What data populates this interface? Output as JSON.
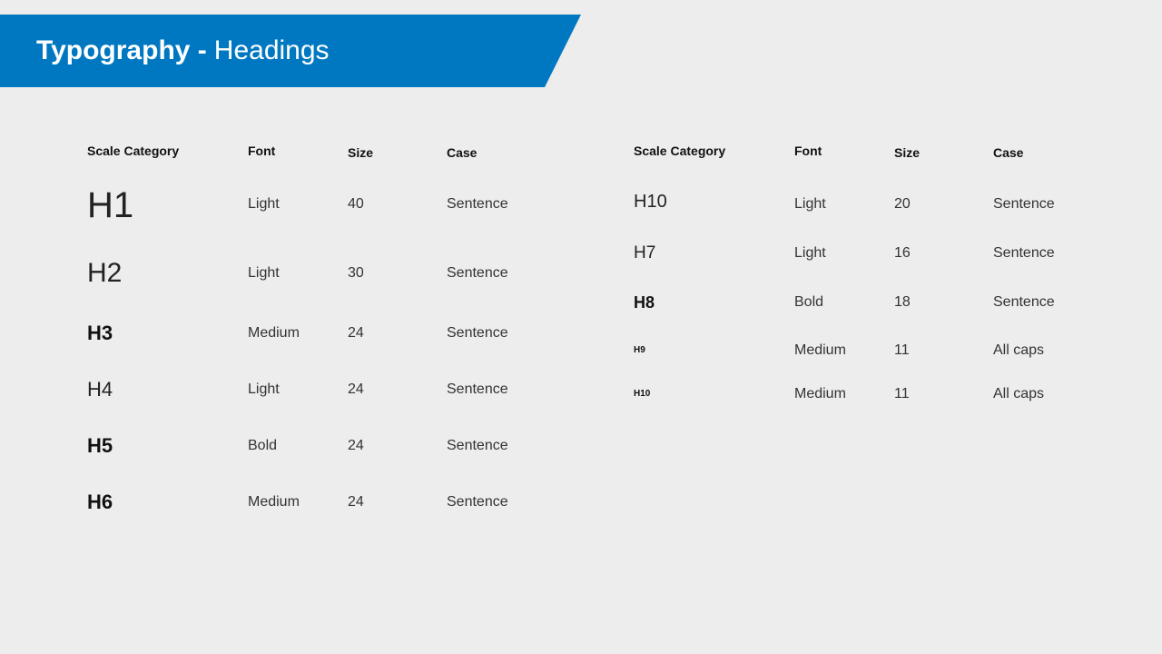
{
  "banner": {
    "title_bold": "Typography -",
    "title_light": "Headings",
    "color": "#0078c1"
  },
  "left_table": {
    "headers": [
      "Scale Category",
      "Font",
      "Size",
      "Case"
    ],
    "rows": [
      {
        "category": "H1",
        "font": "Light",
        "size": "40",
        "case": "Sentence"
      },
      {
        "category": "H2",
        "font": "Light",
        "size": "30",
        "case": "Sentence"
      },
      {
        "category": "H3",
        "font": "Medium",
        "size": "24",
        "case": "Sentence"
      },
      {
        "category": "H4",
        "font": "Light",
        "size": "24",
        "case": "Sentence"
      },
      {
        "category": "H5",
        "font": "Bold",
        "size": "24",
        "case": "Sentence"
      },
      {
        "category": "H6",
        "font": "Medium",
        "size": "24",
        "case": "Sentence"
      }
    ]
  },
  "right_table": {
    "headers": [
      "Scale Category",
      "Font",
      "Size",
      "Case"
    ],
    "rows": [
      {
        "category": "H10",
        "font": "Light",
        "size": "20",
        "case": "Sentence"
      },
      {
        "category": "H7",
        "font": "Light",
        "size": "16",
        "case": "Sentence"
      },
      {
        "category": "H8",
        "font": "Bold",
        "size": "18",
        "case": "Sentence"
      },
      {
        "category": "H9",
        "font": "Medium",
        "size": "11",
        "case": "All caps"
      },
      {
        "category": "H10",
        "font": "Medium",
        "size": "11",
        "case": "All caps"
      }
    ]
  }
}
